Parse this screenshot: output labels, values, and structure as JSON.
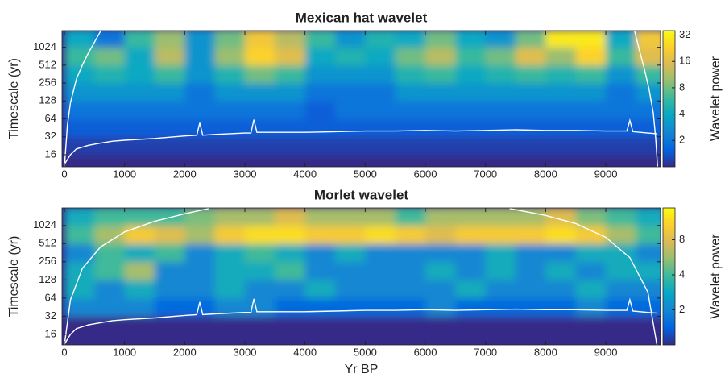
{
  "chart_data": [
    {
      "type": "heatmap",
      "title": "Mexican hat wavelet",
      "ylabel": "Timescale (yr)",
      "colorbar_label": "Wavelet power",
      "xlim": [
        -40,
        9910
      ],
      "xticks": [
        0,
        1000,
        2000,
        3000,
        4000,
        5000,
        6000,
        7000,
        8000,
        9000
      ],
      "ylim": [
        10,
        1950
      ],
      "yticks": [
        16,
        32,
        64,
        128,
        256,
        512,
        1024
      ],
      "ylog": true,
      "clim": [
        1,
        36
      ],
      "cticks": [
        2,
        4,
        8,
        16,
        32
      ],
      "clog": true,
      "colors": [
        "#352a87",
        "#0363e1",
        "#1485d4",
        "#06a7c6",
        "#38b99e",
        "#92bf73",
        "#d9ba56",
        "#fcce2e",
        "#f9fb0e"
      ],
      "x": [
        250,
        750,
        1250,
        1750,
        2250,
        2750,
        3250,
        3750,
        4250,
        4750,
        5250,
        5750,
        6250,
        6750,
        7250,
        7750,
        8250,
        8750,
        9250,
        9750
      ],
      "y": [
        11.3,
        22.6,
        45.3,
        90.5,
        181,
        362,
        724,
        1448
      ],
      "values": [
        [
          1,
          1,
          1,
          1,
          1,
          1,
          1,
          1,
          1,
          1,
          1,
          1,
          1,
          1,
          1,
          1,
          1,
          1,
          1,
          1
        ],
        [
          1.2,
          1.2,
          1.2,
          1.2,
          1.2,
          1.2,
          1.2,
          1.2,
          1.2,
          1.2,
          1.2,
          1.2,
          1.2,
          1.2,
          1.2,
          1.2,
          1.2,
          1.2,
          1.2,
          1.2
        ],
        [
          1.5,
          1.5,
          1.5,
          1.5,
          1.5,
          1.5,
          1.5,
          1.5,
          1.5,
          1.5,
          1.5,
          1.5,
          1.5,
          1.5,
          1.5,
          1.5,
          1.5,
          1.5,
          1.5,
          1.5
        ],
        [
          2,
          2,
          2,
          2,
          2,
          2,
          2,
          2,
          1.5,
          2,
          2,
          2,
          2,
          2,
          2,
          2,
          2,
          2,
          2,
          2
        ],
        [
          3,
          3,
          3,
          3,
          2,
          3,
          3,
          3,
          2,
          2,
          2,
          3,
          3,
          3,
          3,
          3,
          3,
          3,
          2,
          3
        ],
        [
          4,
          5,
          4,
          6,
          3,
          5,
          8,
          6,
          3,
          3,
          3,
          5,
          6,
          4,
          5,
          6,
          5,
          6,
          3,
          6
        ],
        [
          6,
          8,
          4,
          12,
          3,
          10,
          24,
          16,
          4,
          5,
          4,
          8,
          12,
          6,
          8,
          16,
          10,
          24,
          6,
          16
        ],
        [
          4,
          2,
          6,
          10,
          3,
          8,
          20,
          12,
          6,
          3,
          5,
          4,
          8,
          4,
          3,
          8,
          30,
          30,
          4,
          20
        ]
      ],
      "lines": [
        {
          "color": "#ffffff",
          "x": [
            0,
            100,
            200,
            400,
            600,
            800,
            1000,
            1500,
            2000,
            2200,
            2250,
            2300,
            2500,
            3000,
            3100,
            3150,
            3200,
            3500,
            4000,
            4500,
            5000,
            5500,
            6000,
            6500,
            7000,
            7500,
            8000,
            8500,
            9000,
            9350,
            9400,
            9450,
            9700,
            9850
          ],
          "values": [
            11,
            16,
            20,
            23,
            25,
            27,
            28,
            30,
            33,
            34,
            55,
            34,
            35,
            37,
            37,
            62,
            38,
            38,
            38,
            39,
            40,
            40,
            41,
            40,
            41,
            42,
            41,
            41,
            40,
            40,
            60,
            39,
            37,
            36
          ]
        },
        {
          "color": "#ffffff",
          "x": [
            0,
            50,
            100,
            200,
            300,
            400,
            500,
            600,
            5000,
            9480,
            9560,
            9640,
            9720,
            9790,
            9830,
            9860
          ],
          "values": [
            10,
            50,
            120,
            300,
            520,
            830,
            1250,
            1900,
            null,
            1900,
            900,
            450,
            200,
            80,
            30,
            10
          ]
        }
      ]
    },
    {
      "type": "heatmap",
      "title": "Morlet wavelet",
      "ylabel": "Timescale (yr)",
      "xlabel": "Yr BP",
      "colorbar_label": "Wavelet power",
      "xlim": [
        -40,
        9910
      ],
      "xticks": [
        0,
        1000,
        2000,
        3000,
        4000,
        5000,
        6000,
        7000,
        8000,
        9000
      ],
      "ylim": [
        10.7,
        2000
      ],
      "yticks": [
        16,
        32,
        64,
        128,
        256,
        512,
        1024
      ],
      "ylog": true,
      "clim": [
        1,
        15
      ],
      "cticks": [
        2,
        4,
        8
      ],
      "clog": true,
      "colors": [
        "#352a87",
        "#0363e1",
        "#1485d4",
        "#06a7c6",
        "#38b99e",
        "#92bf73",
        "#d9ba56",
        "#fcce2e",
        "#f9fb0e"
      ],
      "x": [
        250,
        750,
        1250,
        1750,
        2250,
        2750,
        3250,
        3750,
        4250,
        4750,
        5250,
        5750,
        6250,
        6750,
        7250,
        7750,
        8250,
        8750,
        9250,
        9750
      ],
      "y": [
        11.3,
        22.6,
        45.3,
        90.5,
        181,
        362,
        724,
        1448
      ],
      "values": [
        [
          1,
          1,
          1,
          1,
          1,
          1,
          1,
          1,
          1,
          1,
          1,
          1,
          1,
          1,
          1,
          1,
          1,
          1,
          1,
          1
        ],
        [
          1,
          1,
          1,
          1,
          1,
          1,
          1,
          1,
          1,
          1,
          1,
          1,
          1,
          1,
          1,
          1,
          1,
          1,
          1,
          1
        ],
        [
          2,
          2,
          2,
          1.5,
          1.5,
          2,
          2,
          1.5,
          1.5,
          1.5,
          1.5,
          1.5,
          2,
          1.5,
          1.5,
          1.5,
          1.5,
          2,
          1.5,
          1.5
        ],
        [
          3,
          2,
          3,
          2,
          2,
          3,
          2,
          2,
          3,
          2,
          2,
          2,
          2,
          3,
          2,
          2,
          2,
          3,
          2,
          2
        ],
        [
          3,
          4,
          6,
          2,
          2,
          3,
          3,
          4,
          2,
          2,
          2,
          2,
          3,
          2,
          3,
          2,
          3,
          2,
          3,
          3
        ],
        [
          2,
          4,
          3,
          4,
          2,
          3,
          4,
          3,
          2,
          3,
          2,
          2,
          2,
          2,
          3,
          2,
          2,
          3,
          3,
          2
        ],
        [
          4,
          6,
          10,
          8,
          6,
          10,
          12,
          12,
          10,
          10,
          12,
          10,
          8,
          10,
          10,
          10,
          12,
          10,
          6,
          4
        ],
        [
          3,
          4,
          4,
          4,
          5,
          6,
          6,
          8,
          6,
          6,
          6,
          4,
          6,
          6,
          6,
          6,
          8,
          5,
          4,
          3
        ]
      ],
      "lines": [
        {
          "color": "#ffffff",
          "x": [
            0,
            100,
            200,
            400,
            600,
            800,
            1000,
            1500,
            2000,
            2200,
            2250,
            2300,
            2500,
            3000,
            3100,
            3150,
            3200,
            3500,
            4000,
            4500,
            5000,
            5500,
            6000,
            6500,
            7000,
            7500,
            8000,
            8500,
            9000,
            9350,
            9400,
            9450,
            9700,
            9850
          ],
          "values": [
            11,
            16,
            20,
            23,
            25,
            27,
            28,
            30,
            33,
            34,
            55,
            34,
            35,
            37,
            37,
            62,
            38,
            38,
            38,
            39,
            40,
            40,
            41,
            40,
            41,
            42,
            41,
            41,
            40,
            40,
            60,
            39,
            37,
            36
          ]
        },
        {
          "color": "#ffffff",
          "x": [
            0,
            100,
            300,
            600,
            1000,
            1500,
            2000,
            2400,
            5000,
            7400,
            8000,
            8500,
            9000,
            9400,
            9700,
            9850
          ],
          "values": [
            10.7,
            60,
            200,
            450,
            800,
            1200,
            1600,
            1950,
            null,
            1950,
            1500,
            1100,
            650,
            300,
            80,
            10.7
          ]
        }
      ]
    }
  ]
}
